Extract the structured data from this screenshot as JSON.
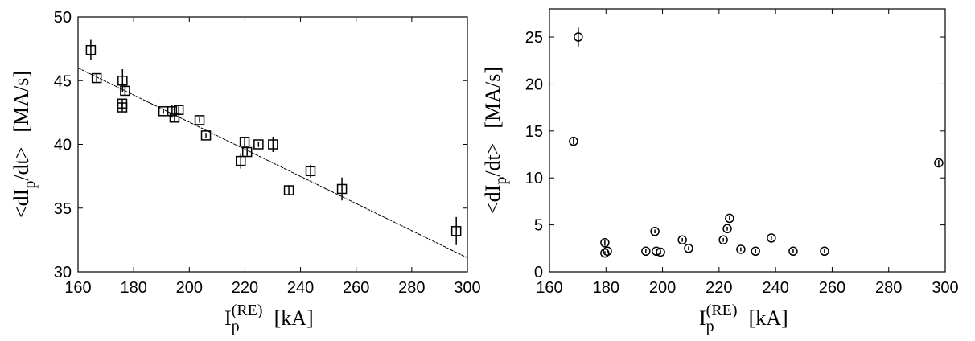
{
  "chart_data": [
    {
      "type": "scatter",
      "marker": "square",
      "xlabel": [
        "I",
        "p",
        "(RE)",
        "[kA]"
      ],
      "ylabel": [
        "<dI",
        "p",
        "/dt>",
        "[MA/s]"
      ],
      "xlim": [
        160,
        300
      ],
      "ylim": [
        30,
        50
      ],
      "xticks": [
        160,
        180,
        200,
        220,
        240,
        260,
        280,
        300
      ],
      "yticks": [
        30,
        35,
        40,
        45,
        50
      ],
      "x": [
        164.6,
        166.7,
        176.0,
        176.9,
        175.9,
        175.9,
        190.7,
        193.8,
        196.2,
        194.7,
        203.7,
        206.0,
        219.9,
        218.5,
        220.8,
        224.9,
        230.1,
        235.8,
        243.6,
        254.9,
        296.0
      ],
      "values": [
        47.4,
        45.2,
        45.0,
        44.2,
        43.2,
        42.9,
        42.6,
        42.6,
        42.7,
        42.1,
        41.9,
        40.7,
        40.2,
        38.7,
        39.4,
        40.0,
        40.0,
        36.4,
        37.9,
        36.5,
        33.2
      ],
      "errors": [
        0.8,
        0.3,
        0.9,
        0.3,
        0.3,
        0.3,
        0.2,
        0.5,
        0.3,
        0.3,
        0.2,
        0.2,
        0.4,
        0.6,
        0.3,
        0.2,
        0.6,
        0.4,
        0.5,
        0.9,
        1.1
      ],
      "fit_line": {
        "x": [
          160,
          300
        ],
        "y": [
          46.0,
          31.1
        ]
      }
    },
    {
      "type": "scatter",
      "marker": "circle",
      "xlabel": [
        "I",
        "p",
        "(RE)",
        "[kA]"
      ],
      "ylabel": [
        "<dI",
        "p",
        "/dt>",
        "[MA/s]"
      ],
      "xlim": [
        160,
        300
      ],
      "ylim": [
        0,
        28
      ],
      "xticks": [
        160,
        180,
        200,
        220,
        240,
        260,
        280,
        300
      ],
      "yticks": [
        0,
        5,
        10,
        15,
        20,
        25
      ],
      "x": [
        170.2,
        168.5,
        179.6,
        179.6,
        180.5,
        194.1,
        197.3,
        197.8,
        199.3,
        207.0,
        209.2,
        221.5,
        222.9,
        223.7,
        227.7,
        232.9,
        238.5,
        246.2,
        257.3,
        297.7
      ],
      "values": [
        25.0,
        13.9,
        3.1,
        2.0,
        2.2,
        2.2,
        4.3,
        2.2,
        2.1,
        3.4,
        2.5,
        3.4,
        4.6,
        5.7,
        2.4,
        2.2,
        3.6,
        2.2,
        2.2,
        11.6
      ],
      "errors": [
        1.0,
        0.3,
        0.3,
        0.2,
        0.2,
        0.2,
        0.2,
        0.2,
        0.2,
        0.2,
        0.2,
        0.2,
        0.2,
        0.2,
        0.2,
        0.2,
        0.2,
        0.2,
        0.2,
        0.3
      ]
    }
  ]
}
